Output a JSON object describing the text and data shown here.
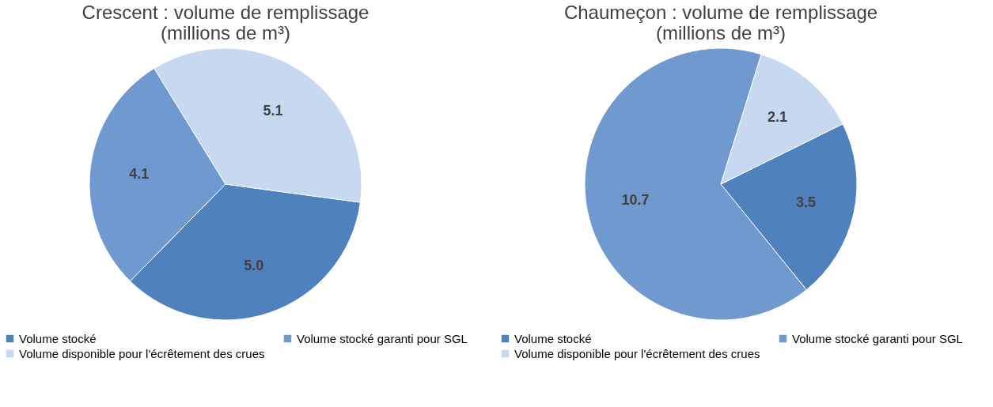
{
  "chart_data": [
    {
      "type": "pie",
      "title": "Crescent : volume de remplissage\n(millions de m³)",
      "categories": [
        "Volume stocké",
        "Volume stocké garanti pour SGL",
        "Volume disponible pour l'écrêtement des crues"
      ],
      "values": [
        5.0,
        4.1,
        5.1
      ],
      "colors": [
        "#4f81bd",
        "#7099cf",
        "#c6d9f1"
      ],
      "value_labels": [
        "5.0",
        "4.1",
        "5.1"
      ],
      "legend": "bottom"
    },
    {
      "type": "pie",
      "title": "Chaumeçon : volume de remplissage\n(millions de m³)",
      "categories": [
        "Volume stocké",
        "Volume stocké garanti pour SGL",
        "Volume disponible pour l'écrêtement des crues"
      ],
      "values": [
        3.5,
        10.7,
        2.1
      ],
      "colors": [
        "#4f81bd",
        "#7099cf",
        "#c6d9f1"
      ],
      "value_labels": [
        "3.5",
        "10.7",
        "2.1"
      ],
      "legend": "bottom"
    }
  ]
}
